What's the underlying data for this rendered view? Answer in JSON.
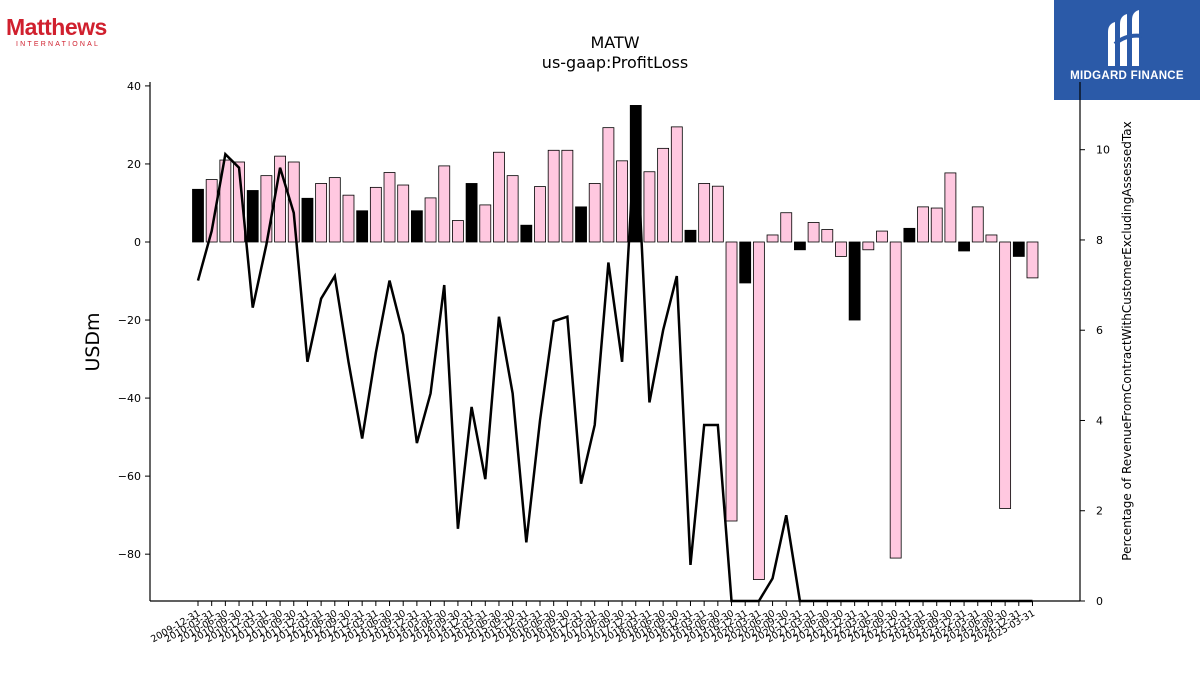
{
  "brand": {
    "left_logo_word": "Matthews",
    "left_logo_sub": "INTERNATIONAL",
    "right_logo_text": "MIDGARD FINANCE",
    "right_logo_bg": "#2b5aa8"
  },
  "chart_data": {
    "type": "bar",
    "title": "MATW",
    "subtitle": "us-gaap:ProfitLoss",
    "ylabel": "USDm",
    "y2label": "Percentage of RevenueFromContractWithCustomerExcludingAssessedTax",
    "ylim": [
      -92,
      41
    ],
    "y2lim": [
      0,
      11.5
    ],
    "yticks": [
      40,
      20,
      0,
      -20,
      -40,
      -60,
      -80
    ],
    "y2ticks": [
      0,
      2,
      4,
      6,
      8,
      10
    ],
    "grid": false,
    "legend": "none",
    "colors": {
      "quarter_bar": "#ffc8e0",
      "annual_bar": "#000000",
      "line": "#000000"
    },
    "x_tick_labels": [
      "2009-12-31",
      "2010-03-31",
      "2010-06-30",
      "2010-09-30",
      "2010-12-31",
      "2011-03-31",
      "2011-06-30",
      "2011-09-30",
      "2011-12-31",
      "2012-03-31",
      "2012-06-30",
      "2012-09-30",
      "2012-12-31",
      "2013-03-31",
      "2013-06-30",
      "2013-09-30",
      "2013-12-31",
      "2014-03-31",
      "2014-06-30",
      "2014-09-30",
      "2014-12-31",
      "2015-03-31",
      "2015-06-30",
      "2015-09-30",
      "2015-12-31",
      "2016-03-31",
      "2016-06-30",
      "2016-09-30",
      "2016-12-31",
      "2017-03-31",
      "2017-06-30",
      "2017-09-30",
      "2017-12-31",
      "2018-03-31",
      "2018-06-30",
      "2018-09-30",
      "2018-12-31",
      "2019-03-31",
      "2019-06-30",
      "2019-09-30",
      "2019-12-31",
      "2020-03-31",
      "2020-06-30",
      "2020-09-30",
      "2020-12-31",
      "2021-03-31",
      "2021-06-30",
      "2021-09-30",
      "2021-12-31",
      "2022-03-31",
      "2022-06-30",
      "2022-09-30",
      "2022-12-31",
      "2023-03-31",
      "2023-06-30",
      "2023-09-30",
      "2023-12-31",
      "2024-03-31",
      "2024-06-30",
      "2024-09-30",
      "2024-12-31",
      "2025-03-31"
    ],
    "bar_values": [
      13.5,
      16,
      21,
      20.5,
      13.2,
      17,
      22,
      20.5,
      11.2,
      15,
      16.5,
      12,
      8,
      14,
      17.8,
      14.6,
      8,
      11.3,
      19.5,
      5.5,
      15,
      9.5,
      23,
      17,
      4.3,
      14.2,
      23.5,
      23.5,
      9,
      15,
      29.3,
      20.8,
      35,
      18,
      24,
      29.5,
      3,
      15,
      14.3,
      -71.5,
      -10.5,
      -86.5,
      1.8,
      7.5,
      -2,
      5,
      3.2,
      -3.7,
      -20,
      -2,
      2.8,
      -81,
      3.5,
      9,
      8.7,
      17.7,
      -2.3,
      9,
      1.8,
      -68.3,
      -3.7,
      -9.2
    ],
    "bar_is_annual": [
      true,
      false,
      false,
      false,
      true,
      false,
      false,
      false,
      true,
      false,
      false,
      false,
      true,
      false,
      false,
      false,
      true,
      false,
      false,
      false,
      true,
      false,
      false,
      false,
      true,
      false,
      false,
      false,
      true,
      false,
      false,
      false,
      true,
      false,
      false,
      false,
      true,
      false,
      false,
      false,
      true,
      false,
      false,
      false,
      true,
      false,
      false,
      false,
      true,
      false,
      false,
      false,
      true,
      false,
      false,
      false,
      true,
      false,
      false,
      false,
      true,
      false
    ],
    "line_values": [
      7.1,
      8.2,
      9.9,
      9.6,
      6.5,
      7.9,
      9.6,
      8.6,
      5.3,
      6.7,
      7.2,
      5.3,
      3.6,
      5.5,
      7.1,
      5.9,
      3.5,
      4.6,
      7.0,
      1.6,
      4.3,
      2.7,
      6.3,
      4.6,
      1.3,
      4.0,
      6.2,
      6.3,
      2.6,
      3.9,
      7.5,
      5.3,
      10.6,
      4.4,
      6.0,
      7.2,
      0.8,
      3.9,
      3.9,
      0,
      0,
      0,
      0.5,
      1.9,
      0,
      0,
      0,
      0,
      0,
      0,
      0,
      0,
      0,
      0,
      0,
      0,
      0,
      0,
      0,
      0,
      0,
      0
    ]
  }
}
